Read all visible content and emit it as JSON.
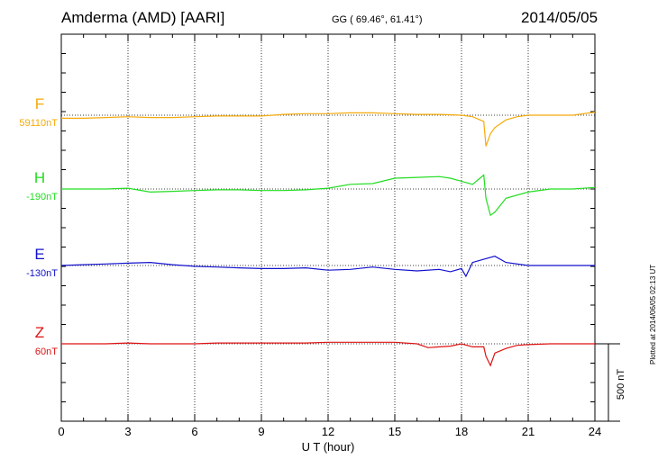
{
  "header": {
    "station": "Amderma (AMD)  [AARI]",
    "coords": "GG ( 69.46°,  61.41°)",
    "date": "2014/05/05"
  },
  "footer": {
    "plotted": "Plotted at 2014/06/05 02:13 UT"
  },
  "colors": {
    "F": "#f5aa0a",
    "H": "#22dd22",
    "E": "#1111cc",
    "Z": "#dd1111"
  },
  "chart_data": {
    "type": "line",
    "xlabel": "U T (hour)",
    "xlim": [
      0,
      24
    ],
    "xticks": [
      "0",
      "3",
      "6",
      "9",
      "12",
      "15",
      "18",
      "21",
      "24"
    ],
    "scale_bar_label": "500 nT",
    "scale_bar_nT": 500,
    "grid": true,
    "channels": [
      {
        "name": "F",
        "baseline_label": "59110nT",
        "color": "#f5aa0a",
        "x": [
          0,
          1,
          2,
          3,
          4,
          5,
          6,
          7,
          8,
          9,
          10,
          11,
          12,
          13,
          14,
          15,
          16,
          17,
          18,
          18.5,
          19,
          19.1,
          19.3,
          19.5,
          20,
          20.5,
          21,
          22,
          23,
          24
        ],
        "y": [
          -20,
          -20,
          -15,
          -10,
          -15,
          -15,
          -10,
          -5,
          -5,
          -5,
          5,
          10,
          10,
          15,
          15,
          10,
          5,
          5,
          0,
          -10,
          -40,
          -200,
          -120,
          -80,
          -30,
          -10,
          0,
          0,
          0,
          20
        ]
      },
      {
        "name": "H",
        "baseline_label": "-190nT",
        "color": "#22dd22",
        "x": [
          0,
          1,
          2,
          3,
          4,
          5,
          6,
          7,
          8,
          9,
          10,
          11,
          12,
          13,
          14,
          15,
          16,
          17,
          17.5,
          18,
          18.5,
          19,
          19.1,
          19.3,
          19.5,
          20,
          21,
          22,
          23,
          24
        ],
        "y": [
          0,
          0,
          0,
          5,
          -20,
          -15,
          -10,
          -5,
          -5,
          -10,
          -10,
          -5,
          5,
          30,
          35,
          70,
          75,
          80,
          70,
          50,
          30,
          90,
          -60,
          -170,
          -150,
          -60,
          -20,
          0,
          0,
          10
        ]
      },
      {
        "name": "E",
        "baseline_label": "-130nT",
        "color": "#1111cc",
        "x": [
          0,
          1,
          2,
          3,
          4,
          5,
          6,
          7,
          8,
          9,
          10,
          11,
          12,
          13,
          14,
          15,
          16,
          17,
          17.5,
          18,
          18.2,
          18.5,
          19,
          19.5,
          20,
          21,
          22,
          23,
          24
        ],
        "y": [
          0,
          5,
          10,
          15,
          20,
          5,
          -5,
          -10,
          -15,
          -20,
          -20,
          -15,
          -30,
          -25,
          -10,
          -25,
          -35,
          -25,
          -40,
          -20,
          -70,
          20,
          40,
          60,
          20,
          0,
          0,
          0,
          0
        ]
      },
      {
        "name": "Z",
        "baseline_label": "60nT",
        "color": "#dd1111",
        "x": [
          0,
          1,
          2,
          3,
          4,
          5,
          6,
          7,
          8,
          9,
          10,
          11,
          12,
          13,
          14,
          15,
          16,
          16.5,
          17,
          17.5,
          18,
          18.5,
          19,
          19.1,
          19.3,
          19.5,
          20,
          20.5,
          21,
          22,
          23,
          24
        ],
        "y": [
          0,
          0,
          0,
          5,
          0,
          0,
          0,
          5,
          5,
          5,
          5,
          5,
          10,
          10,
          10,
          10,
          0,
          -25,
          -20,
          -15,
          0,
          -20,
          -20,
          -80,
          -140,
          -60,
          -30,
          -10,
          -5,
          0,
          0,
          0
        ]
      }
    ]
  }
}
